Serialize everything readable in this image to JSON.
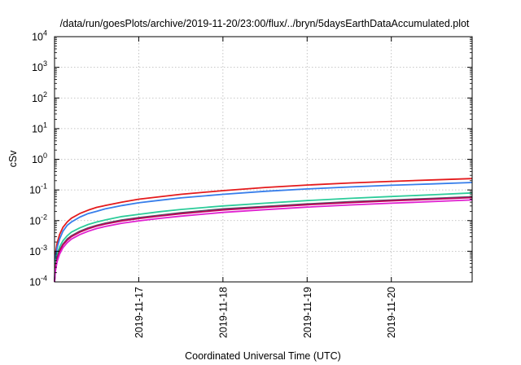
{
  "chart_data": {
    "type": "line",
    "title": "/data/run/goesPlots/archive/2019-11-20/23:00/flux/../bryn/5daysEarthDataAccumulated.plot",
    "xlabel": "Coordinated Universal Time (UTC)",
    "ylabel": "cSv",
    "x_range": [
      "2019-11-16 00:00",
      "2019-11-20 23:00"
    ],
    "x_ticks": [
      "2019-11-17",
      "2019-11-18",
      "2019-11-19",
      "2019-11-20"
    ],
    "y_scale": "log",
    "ylim": [
      0.0001,
      10000
    ],
    "y_ticks": [
      {
        "base": "10",
        "exp": "-4"
      },
      {
        "base": "10",
        "exp": "-3"
      },
      {
        "base": "10",
        "exp": "-2"
      },
      {
        "base": "10",
        "exp": "-1"
      },
      {
        "base": "10",
        "exp": "0"
      },
      {
        "base": "10",
        "exp": "1"
      },
      {
        "base": "10",
        "exp": "2"
      },
      {
        "base": "10",
        "exp": "3"
      },
      {
        "base": "10",
        "exp": "4"
      }
    ],
    "grid": true,
    "legend": "none",
    "x_days": [
      0.01,
      0.03,
      0.06,
      0.1,
      0.15,
      0.2,
      0.3,
      0.4,
      0.5,
      0.6,
      0.8,
      1.0,
      1.25,
      1.5,
      2.0,
      2.5,
      3.0,
      3.5,
      4.0,
      4.5,
      4.96
    ],
    "series": [
      {
        "color": "#e41a1c",
        "values": [
          0.0008,
          0.0018,
          0.0035,
          0.006,
          0.009,
          0.012,
          0.017,
          0.022,
          0.027,
          0.031,
          0.04,
          0.05,
          0.06,
          0.072,
          0.095,
          0.12,
          0.145,
          0.168,
          0.19,
          0.212,
          0.235
        ]
      },
      {
        "color": "#377eeb",
        "values": [
          0.0006,
          0.0013,
          0.0025,
          0.0045,
          0.007,
          0.009,
          0.013,
          0.017,
          0.02,
          0.024,
          0.031,
          0.038,
          0.046,
          0.055,
          0.072,
          0.09,
          0.108,
          0.125,
          0.142,
          0.158,
          0.175
        ]
      },
      {
        "color": "#2ccc9a",
        "values": [
          0.0004,
          0.0008,
          0.0014,
          0.0022,
          0.0032,
          0.0042,
          0.0058,
          0.0075,
          0.009,
          0.0105,
          0.0135,
          0.016,
          0.0195,
          0.023,
          0.03,
          0.037,
          0.045,
          0.053,
          0.061,
          0.07,
          0.08
        ]
      },
      {
        "color": "#555566",
        "values": [
          0.0003,
          0.0006,
          0.0011,
          0.0017,
          0.0025,
          0.0032,
          0.0045,
          0.0058,
          0.007,
          0.0082,
          0.0105,
          0.0125,
          0.015,
          0.018,
          0.024,
          0.029,
          0.035,
          0.041,
          0.047,
          0.053,
          0.06
        ]
      },
      {
        "color": "#c0005a",
        "values": [
          0.00028,
          0.00055,
          0.001,
          0.0016,
          0.0023,
          0.003,
          0.0042,
          0.0054,
          0.0066,
          0.0077,
          0.0098,
          0.0117,
          0.0141,
          0.0168,
          0.0222,
          0.0272,
          0.0328,
          0.0385,
          0.0442,
          0.0498,
          0.0565
        ]
      },
      {
        "color": "#e020d0",
        "values": [
          0.00022,
          0.00045,
          0.0008,
          0.0013,
          0.0019,
          0.0025,
          0.0035,
          0.0045,
          0.0055,
          0.0064,
          0.0082,
          0.0098,
          0.0118,
          0.014,
          0.0185,
          0.0228,
          0.0275,
          0.0322,
          0.037,
          0.0417,
          0.0472
        ]
      }
    ]
  }
}
